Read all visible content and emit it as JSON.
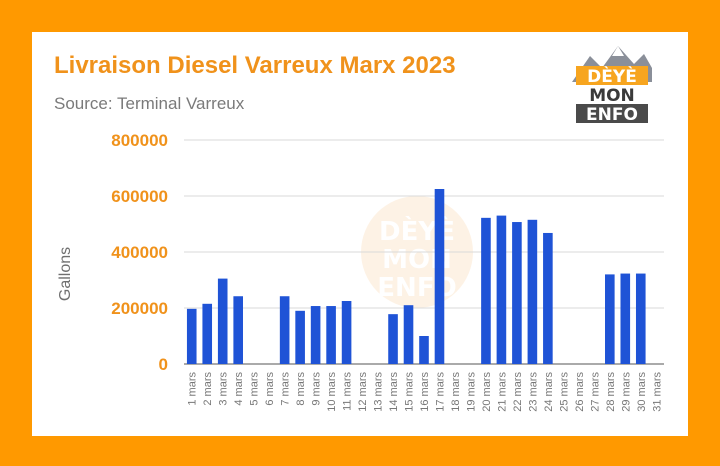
{
  "header": {
    "title": "Livraison Diesel Varreux Marx 2023",
    "subtitle": "Source: Terminal Varreux"
  },
  "logo": {
    "line1": "DÈYÈ",
    "line2": "MON",
    "line3": "ENFO"
  },
  "colors": {
    "background": "#ff9900",
    "title": "#f0921b",
    "tick_labels": "#f0921b",
    "bar": "#1f53d6",
    "grid": "#d9d9d9"
  },
  "chart_data": {
    "type": "bar",
    "title": "Livraison Diesel Varreux Marx 2023",
    "subtitle": "Source: Terminal Varreux",
    "xlabel": "",
    "ylabel": "Gallons",
    "ylim": [
      0,
      800000
    ],
    "yticks": [
      "0",
      "200000",
      "400000",
      "600000",
      "800000"
    ],
    "grid": true,
    "categories": [
      "1 mars",
      "2 mars",
      "3 mars",
      "4 mars",
      "5 mars",
      "6 mars",
      "7 mars",
      "8 mars",
      "9 mars",
      "10 mars",
      "11 mars",
      "12 mars",
      "13 mars",
      "14 mars",
      "15 mars",
      "16 mars",
      "17 mars",
      "18 mars",
      "19 mars",
      "20 mars",
      "21 mars",
      "22 mars",
      "23 mars",
      "24 mars",
      "25 mars",
      "26 mars",
      "27 mars",
      "28 mars",
      "29 mars",
      "30 mars",
      "31 mars"
    ],
    "values": [
      197000,
      215000,
      305000,
      242000,
      0,
      0,
      242000,
      190000,
      207000,
      207000,
      225000,
      0,
      0,
      178000,
      210000,
      100000,
      625000,
      0,
      0,
      522000,
      530000,
      507000,
      515000,
      468000,
      0,
      0,
      0,
      320000,
      323000,
      323000,
      0
    ]
  }
}
